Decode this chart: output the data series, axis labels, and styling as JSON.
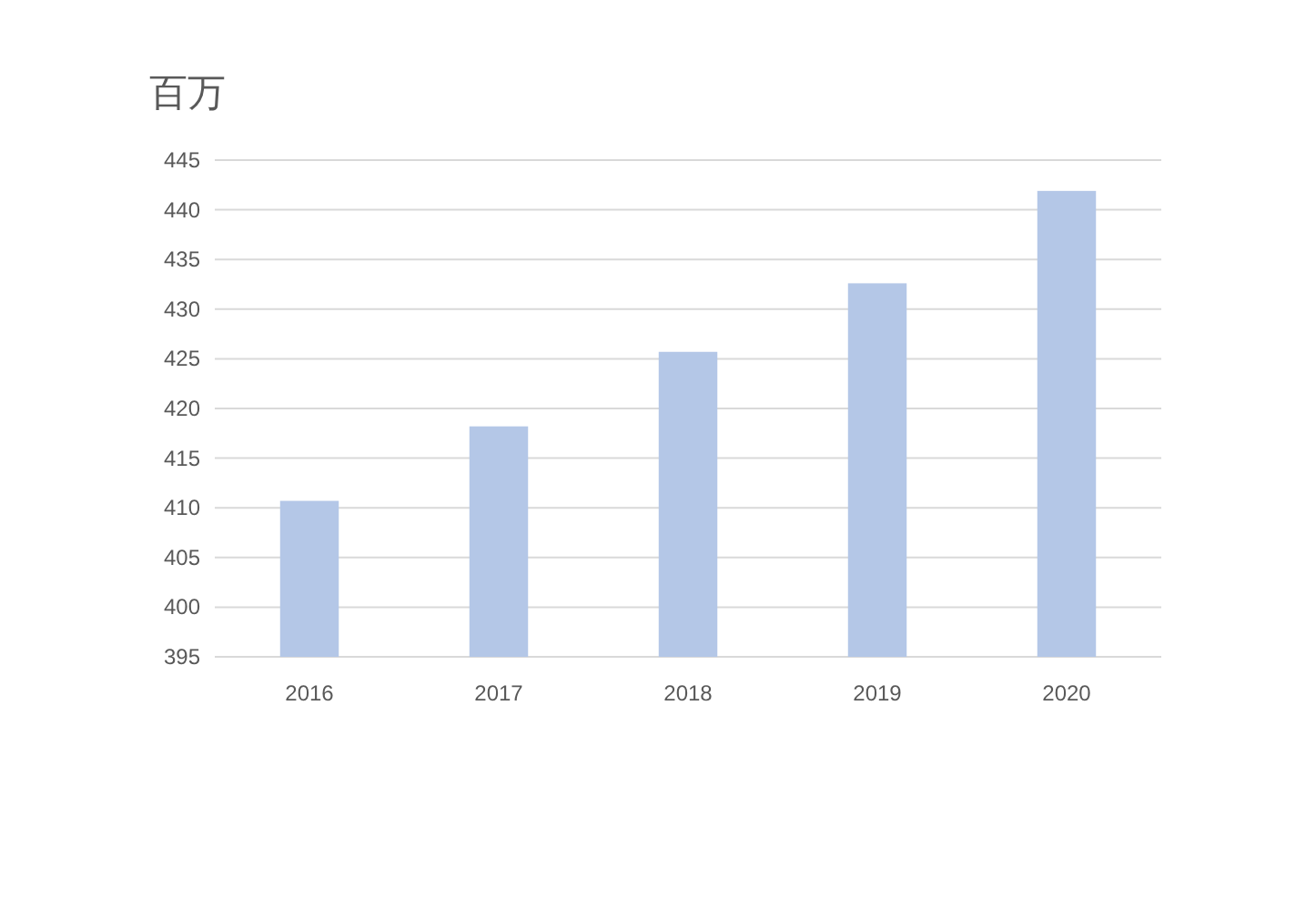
{
  "chart_data": {
    "type": "bar",
    "ylabel": "百万",
    "categories": [
      "2016",
      "2017",
      "2018",
      "2019",
      "2020"
    ],
    "values": [
      410.7,
      418.2,
      425.7,
      432.6,
      441.9
    ],
    "color": "#b4c7e7",
    "ylim": [
      395,
      445
    ],
    "yticks": [
      395,
      400,
      405,
      410,
      415,
      420,
      425,
      430,
      435,
      440,
      445
    ],
    "grid": "y"
  }
}
